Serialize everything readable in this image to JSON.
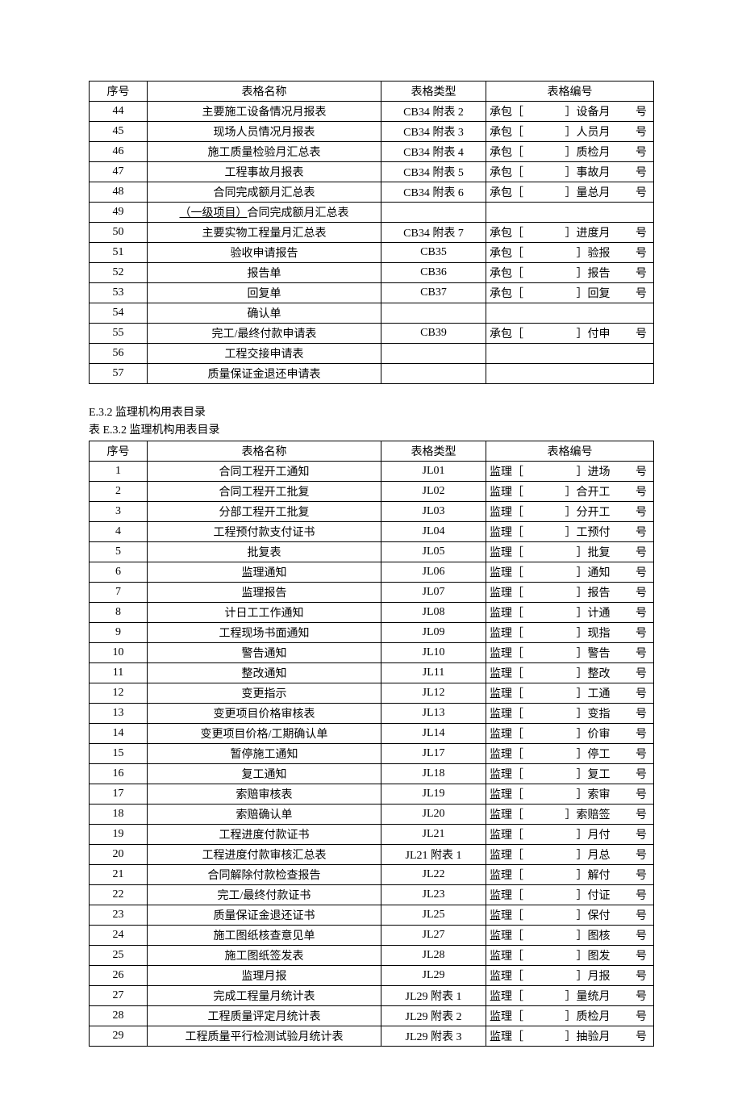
{
  "table1": {
    "headers": {
      "seq": "序号",
      "name": "表格名称",
      "type": "表格类型",
      "code": "表格编号"
    },
    "rows": [
      {
        "seq": "44",
        "name": "主要施工设备情况月报表",
        "type": "CB34 附表 2",
        "code_a": "承包［",
        "code_b": "］设备月",
        "code_c": "号"
      },
      {
        "seq": "45",
        "name": "现场人员情况月报表",
        "type": "CB34 附表 3",
        "code_a": "承包［",
        "code_b": "］人员月",
        "code_c": "号"
      },
      {
        "seq": "46",
        "name": "施工质量检验月汇总表",
        "type": "CB34 附表 4",
        "code_a": "承包［",
        "code_b": "］质检月",
        "code_c": "号"
      },
      {
        "seq": "47",
        "name": "工程事故月报表",
        "type": "CB34 附表 5",
        "code_a": "承包［",
        "code_b": "］事故月",
        "code_c": "号"
      },
      {
        "seq": "48",
        "name": "合同完成额月汇总表",
        "type": "CB34 附表 6",
        "code_a": "承包［",
        "code_b": "］量总月",
        "code_c": "号"
      },
      {
        "seq": "49",
        "name_prefix": "（一级项目）",
        "name_suffix": "合同完成额月汇总表",
        "type": "",
        "code_a": "",
        "code_b": "",
        "code_c": ""
      },
      {
        "seq": "50",
        "name": "主要实物工程量月汇总表",
        "type": "CB34 附表 7",
        "code_a": "承包［",
        "code_b": "］进度月",
        "code_c": "号"
      },
      {
        "seq": "51",
        "name": "验收申请报告",
        "type": "CB35",
        "code_a": "承包［",
        "code_b": "］验报",
        "code_c": "号"
      },
      {
        "seq": "52",
        "name": "报告单",
        "type": "CB36",
        "code_a": "承包［",
        "code_b": "］报告",
        "code_c": "号"
      },
      {
        "seq": "53",
        "name": "回复单",
        "type": "CB37",
        "code_a": "承包［",
        "code_b": "］回复",
        "code_c": "号"
      },
      {
        "seq": "54",
        "name": "确认单",
        "type": "",
        "code_a": "",
        "code_b": "",
        "code_c": ""
      },
      {
        "seq": "55",
        "name": "完工/最终付款申请表",
        "type": "CB39",
        "code_a": "承包［",
        "code_b": "］付申",
        "code_c": "号"
      },
      {
        "seq": "56",
        "name": "工程交接申请表",
        "type": "",
        "code_a": "",
        "code_b": "",
        "code_c": ""
      },
      {
        "seq": "57",
        "name": "质量保证金退还申请表",
        "type": "",
        "code_a": "",
        "code_b": "",
        "code_c": ""
      }
    ]
  },
  "section2": {
    "heading": "E.3.2  监理机构用表目录",
    "subheading": "表 E.3.2  监理机构用表目录"
  },
  "table2": {
    "headers": {
      "seq": "序号",
      "name": "表格名称",
      "type": "表格类型",
      "code": "表格编号"
    },
    "rows": [
      {
        "seq": "1",
        "name": "合同工程开工通知",
        "type": "JL01",
        "code_a": "监理［",
        "code_b": "］进场",
        "code_c": "号"
      },
      {
        "seq": "2",
        "name": "合同工程开工批复",
        "type": "JL02",
        "code_a": "监理［",
        "code_b": "］合开工",
        "code_c": "号"
      },
      {
        "seq": "3",
        "name": "分部工程开工批复",
        "type": "JL03",
        "code_a": "监理［",
        "code_b": "］分开工",
        "code_c": "号"
      },
      {
        "seq": "4",
        "name": "工程预付款支付证书",
        "type": "JL04",
        "code_a": "监理［",
        "code_b": "］工预付",
        "code_c": "号"
      },
      {
        "seq": "5",
        "name": "批复表",
        "type": "JL05",
        "code_a": "监理［",
        "code_b": "］批复",
        "code_c": "号"
      },
      {
        "seq": "6",
        "name": "监理通知",
        "type": "JL06",
        "code_a": "监理［",
        "code_b": "］通知",
        "code_c": "号"
      },
      {
        "seq": "7",
        "name": "监理报告",
        "type": "JL07",
        "code_a": "监理［",
        "code_b": "］报告",
        "code_c": "号"
      },
      {
        "seq": "8",
        "name": "计日工工作通知",
        "type": "JL08",
        "code_a": "监理［",
        "code_b": "］计通",
        "code_c": "号"
      },
      {
        "seq": "9",
        "name": "工程现场书面通知",
        "type": "JL09",
        "code_a": "监理［",
        "code_b": "］现指",
        "code_c": "号"
      },
      {
        "seq": "10",
        "name": "警告通知",
        "type": "JL10",
        "code_a": "监理［",
        "code_b": "］警告",
        "code_c": "号"
      },
      {
        "seq": "11",
        "name": "整改通知",
        "type": "JL11",
        "code_a": "监理［",
        "code_b": "］整改",
        "code_c": "号"
      },
      {
        "seq": "12",
        "name": "变更指示",
        "type": "JL12",
        "code_a": "监理［",
        "code_b": "］工通",
        "code_c": "号"
      },
      {
        "seq": "13",
        "name": "变更项目价格审核表",
        "type": "JL13",
        "code_a": "监理［",
        "code_b": "］变指",
        "code_c": "号"
      },
      {
        "seq": "14",
        "name": "变更项目价格/工期确认单",
        "type": "JL14",
        "code_a": "监理［",
        "code_b": "］价审",
        "code_c": "号"
      },
      {
        "seq": "15",
        "name": "暂停施工通知",
        "type": "JL17",
        "code_a": "监理［",
        "code_b": "］停工",
        "code_c": "号"
      },
      {
        "seq": "16",
        "name": "复工通知",
        "type": "JL18",
        "code_a": "监理［",
        "code_b": "］复工",
        "code_c": "号"
      },
      {
        "seq": "17",
        "name": "索赔审核表",
        "type": "JL19",
        "code_a": "监理［",
        "code_b": "］索审",
        "code_c": "号"
      },
      {
        "seq": "18",
        "name": "索赔确认单",
        "type": "JL20",
        "code_a": "监理［",
        "code_b": "］索赔签",
        "code_c": "号"
      },
      {
        "seq": "19",
        "name": "工程进度付款证书",
        "type": "JL21",
        "code_a": "监理［",
        "code_b": "］月付",
        "code_c": "号"
      },
      {
        "seq": "20",
        "name": "工程进度付款审核汇总表",
        "type": "JL21 附表 1",
        "code_a": "监理［",
        "code_b": "］月总",
        "code_c": "号"
      },
      {
        "seq": "21",
        "name": "合同解除付款检查报告",
        "type": "JL22",
        "code_a": "监理［",
        "code_b": "］解付",
        "code_c": "号"
      },
      {
        "seq": "22",
        "name": "完工/最终付款证书",
        "type": "JL23",
        "code_a": "监理［",
        "code_b": "］付证",
        "code_c": "号"
      },
      {
        "seq": "23",
        "name": "质量保证金退还证书",
        "type": "JL25",
        "code_a": "监理［",
        "code_b": "］保付",
        "code_c": "号"
      },
      {
        "seq": "24",
        "name": "施工图纸核查意见单",
        "type": "JL27",
        "code_a": "监理［",
        "code_b": "］图核",
        "code_c": "号"
      },
      {
        "seq": "25",
        "name": "施工图纸签发表",
        "type": "JL28",
        "code_a": "监理［",
        "code_b": "］图发",
        "code_c": "号"
      },
      {
        "seq": "26",
        "name": "监理月报",
        "type": "JL29",
        "code_a": "监理［",
        "code_b": "］月报",
        "code_c": "号"
      },
      {
        "seq": "27",
        "name": "完成工程量月统计表",
        "type": "JL29 附表 1",
        "code_a": "监理［",
        "code_b": "］量统月",
        "code_c": "号"
      },
      {
        "seq": "28",
        "name": "工程质量评定月统计表",
        "type": "JL29 附表 2",
        "code_a": "监理［",
        "code_b": "］质检月",
        "code_c": "号"
      },
      {
        "seq": "29",
        "name": "工程质量平行检测试验月统计表",
        "type": "JL29 附表 3",
        "code_a": "监理［",
        "code_b": "］抽验月",
        "code_c": "号"
      }
    ]
  }
}
